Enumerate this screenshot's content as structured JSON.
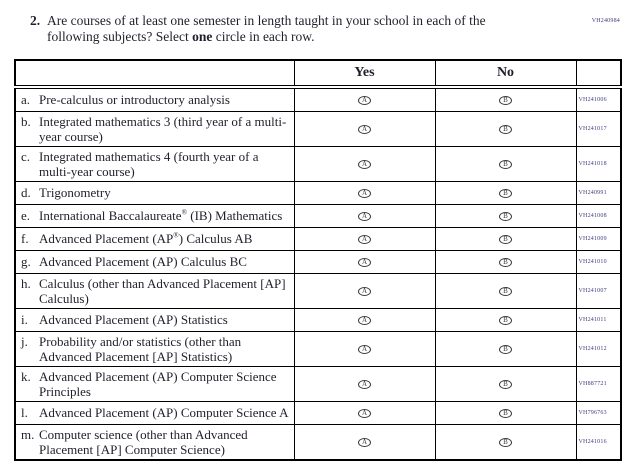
{
  "page": {
    "form_code": "VH240984"
  },
  "question": {
    "number": "2.",
    "text_prefix": "Are courses of at least one semester in length taught in your school in each of the following subjects? Select ",
    "emphasis": "one",
    "text_suffix": " circle in each row."
  },
  "colors": {
    "body_text": "#1f1f2b",
    "code_text": "#3d3d7d",
    "border": "#000000",
    "bubble_outline": "#3a3a3a"
  },
  "table": {
    "header": {
      "yes": "Yes",
      "no": "No"
    },
    "bubbles": {
      "yes_letter": "A",
      "no_letter": "B"
    },
    "rows": [
      {
        "letter": "a.",
        "label": "Pre-calculus or introductory analysis",
        "code": "VH241006"
      },
      {
        "letter": "b.",
        "label": "Integrated mathematics 3 (third year of a multi-year course)",
        "code": "VH241017"
      },
      {
        "letter": "c.",
        "label": "Integrated mathematics 4 (fourth year of a multi-year course)",
        "code": "VH241018"
      },
      {
        "letter": "d.",
        "label": "Trigonometry",
        "code": "VH240991"
      },
      {
        "letter": "e.",
        "label": "International Baccalaureate® (IB) Mathematics",
        "code": "VH241008"
      },
      {
        "letter": "f.",
        "label": "Advanced Placement (AP®) Calculus AB",
        "code": "VH241009"
      },
      {
        "letter": "g.",
        "label": "Advanced Placement (AP) Calculus BC",
        "code": "VH241010"
      },
      {
        "letter": "h.",
        "label": "Calculus (other than Advanced Placement [AP] Calculus)",
        "code": "VH241007"
      },
      {
        "letter": "i.",
        "label": "Advanced Placement (AP) Statistics",
        "code": "VH241011"
      },
      {
        "letter": "j.",
        "label": "Probability and/or statistics (other than Advanced Placement [AP] Statistics)",
        "code": "VH241012"
      },
      {
        "letter": "k.",
        "label": "Advanced Placement (AP) Computer Science Principles",
        "code": "VH887721"
      },
      {
        "letter": "l.",
        "label": "Advanced Placement (AP) Computer Science A",
        "code": "VH796763"
      },
      {
        "letter": "m.",
        "label": "Computer science (other than Advanced Placement [AP] Computer Science)",
        "code": "VH241016"
      }
    ]
  }
}
